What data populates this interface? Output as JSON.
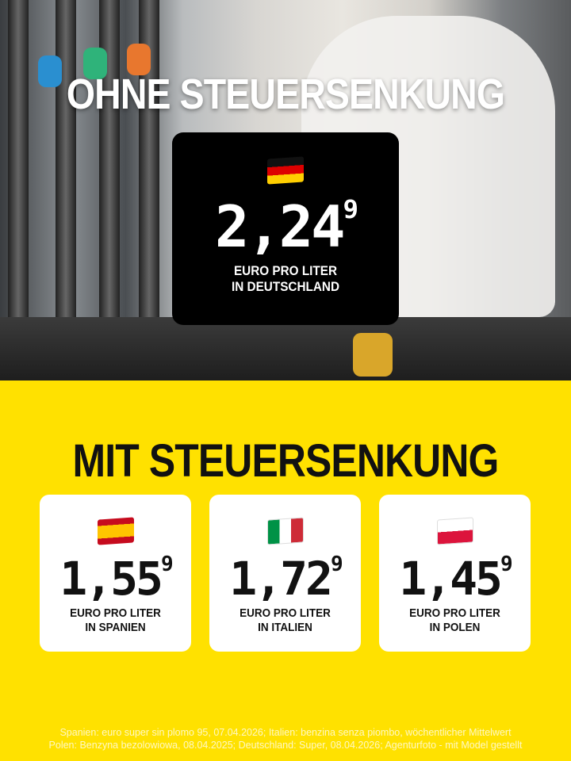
{
  "header": {
    "title": "OHNE STEUERSENKUNG"
  },
  "germany": {
    "flag": "de-flag-icon",
    "price_main": "2,24",
    "price_sup": "9",
    "line1": "EURO PRO LITER",
    "line2": "IN DEUTSCHLAND"
  },
  "section2": {
    "title": "MIT STEUERSENKUNG"
  },
  "cards": [
    {
      "flag": "es-flag-icon",
      "price_main": "1,55",
      "price_sup": "9",
      "line1": "EURO PRO LITER",
      "line2": "IN SPANIEN"
    },
    {
      "flag": "it-flag-icon",
      "price_main": "1,72",
      "price_sup": "9",
      "line1": "EURO PRO LITER",
      "line2": "IN ITALIEN"
    },
    {
      "flag": "pl-flag-icon",
      "price_main": "1,45",
      "price_sup": "9",
      "line1": "EURO PRO LITER",
      "line2": "IN POLEN"
    }
  ],
  "footer": {
    "line1": "Spanien: euro super sin plomo 95, 07.04.2026; Italien: benzina senza piombo, wöchentlicher Mittelwert",
    "line2": "Polen: Benzyna bezolowiowa, 08.04.2025; Deutschland: Super, 08.04.2026; Agenturfoto - mit Model gestellt"
  },
  "colors": {
    "accent": "#ffe100",
    "dark": "#000000"
  }
}
